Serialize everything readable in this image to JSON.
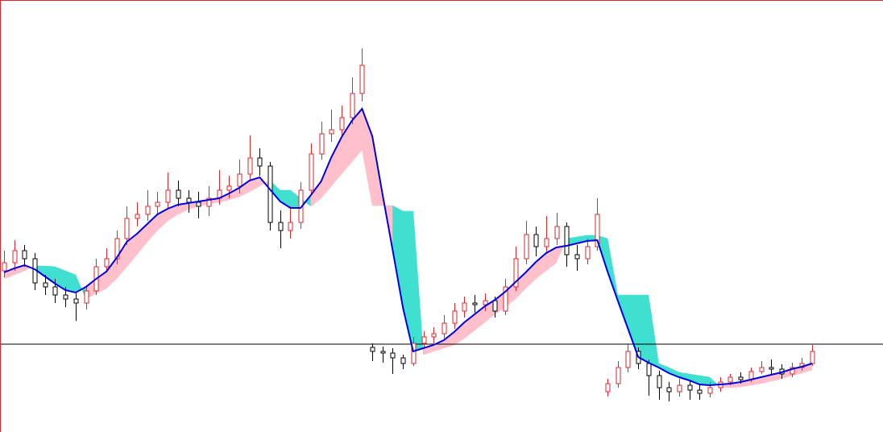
{
  "chart_data": {
    "type": "candlestick",
    "ylim": [
      0,
      536
    ],
    "level": 109,
    "up_color": "#e0242b",
    "down_color": "#000000",
    "ma_color": "#0000dd",
    "band_up_color": "#ffc0cb",
    "band_down_color": "#40e0d0",
    "level_color": "#000000",
    "open": [
      200,
      210,
      225,
      215,
      185,
      180,
      170,
      165,
      160,
      175,
      205,
      215,
      240,
      265,
      270,
      280,
      285,
      300,
      290,
      285,
      280,
      290,
      300,
      305,
      320,
      340,
      330,
      260,
      250,
      260,
      300,
      345,
      370,
      375,
      390,
      420,
      105,
      100,
      98,
      92,
      85,
      110,
      118,
      122,
      135,
      150,
      160,
      158,
      163,
      150,
      180,
      215,
      245,
      230,
      240,
      255,
      220,
      215,
      230,
      50,
      60,
      80,
      100,
      85,
      70,
      55,
      50,
      58,
      52,
      48,
      55,
      62,
      68,
      65,
      75,
      80,
      78,
      72,
      80,
      85
    ],
    "high": [
      225,
      238,
      232,
      222,
      195,
      190,
      180,
      172,
      182,
      215,
      228,
      250,
      280,
      285,
      300,
      298,
      322,
      312,
      300,
      298,
      305,
      325,
      318,
      338,
      368,
      352,
      335,
      275,
      280,
      310,
      358,
      385,
      400,
      405,
      440,
      476,
      110,
      106,
      104,
      96,
      118,
      125,
      130,
      145,
      160,
      168,
      170,
      172,
      168,
      190,
      230,
      262,
      255,
      268,
      272,
      260,
      232,
      240,
      290,
      66,
      88,
      110,
      105,
      90,
      76,
      62,
      66,
      64,
      58,
      62,
      68,
      72,
      74,
      80,
      88,
      90,
      84,
      86,
      92,
      108
    ],
    "low": [
      192,
      200,
      205,
      176,
      170,
      160,
      155,
      138,
      152,
      170,
      198,
      208,
      232,
      255,
      262,
      270,
      278,
      280,
      272,
      265,
      268,
      282,
      290,
      296,
      312,
      318,
      250,
      228,
      240,
      252,
      295,
      338,
      360,
      368,
      382,
      410,
      88,
      86,
      72,
      78,
      82,
      104,
      110,
      116,
      128,
      142,
      148,
      150,
      142,
      145,
      175,
      208,
      218,
      222,
      232,
      205,
      200,
      208,
      225,
      44,
      55,
      74,
      78,
      45,
      40,
      38,
      44,
      40,
      40,
      43,
      50,
      58,
      60,
      62,
      72,
      70,
      66,
      68,
      76,
      82
    ],
    "close": [
      210,
      225,
      215,
      185,
      180,
      170,
      165,
      160,
      175,
      205,
      215,
      240,
      265,
      270,
      280,
      285,
      300,
      290,
      285,
      280,
      290,
      300,
      305,
      320,
      340,
      330,
      260,
      250,
      260,
      300,
      345,
      370,
      375,
      390,
      420,
      455,
      100,
      98,
      92,
      85,
      110,
      118,
      122,
      135,
      150,
      160,
      158,
      163,
      150,
      180,
      215,
      245,
      230,
      240,
      255,
      220,
      215,
      230,
      270,
      60,
      80,
      100,
      85,
      70,
      55,
      50,
      58,
      52,
      48,
      55,
      62,
      68,
      65,
      75,
      80,
      78,
      72,
      80,
      85,
      100
    ],
    "ma": [
      198,
      203,
      207,
      202,
      193,
      184,
      176,
      173,
      180,
      190,
      199,
      216,
      236,
      246,
      258,
      270,
      277,
      282,
      284,
      286,
      288,
      290,
      296,
      303,
      312,
      316,
      301,
      286,
      278,
      278,
      294,
      311,
      341,
      366,
      386,
      401,
      367,
      295,
      225,
      154,
      100,
      104,
      108,
      114,
      124,
      136,
      146,
      156,
      164,
      174,
      186,
      198,
      211,
      222,
      229,
      231,
      234,
      237,
      238,
      199,
      163,
      128,
      93,
      86,
      80,
      73,
      68,
      64,
      59,
      58,
      59,
      60,
      62,
      65,
      68,
      71,
      74,
      78,
      81,
      85
    ],
    "stop": [
      190,
      195,
      200,
      206,
      206,
      205,
      200,
      195,
      165,
      172,
      178,
      190,
      205,
      220,
      236,
      250,
      262,
      270,
      276,
      280,
      283,
      285,
      288,
      292,
      298,
      305,
      312,
      300,
      300,
      290,
      280,
      290,
      305,
      320,
      335,
      350,
      281,
      281,
      281,
      274,
      274,
      96,
      100,
      104,
      108,
      116,
      126,
      136,
      146,
      155,
      165,
      178,
      190,
      200,
      210,
      240,
      242,
      244,
      244,
      240,
      170,
      170,
      170,
      170,
      85,
      80,
      74,
      72,
      70,
      68,
      56,
      55,
      56,
      58,
      60,
      63,
      66,
      70,
      73,
      77
    ]
  }
}
